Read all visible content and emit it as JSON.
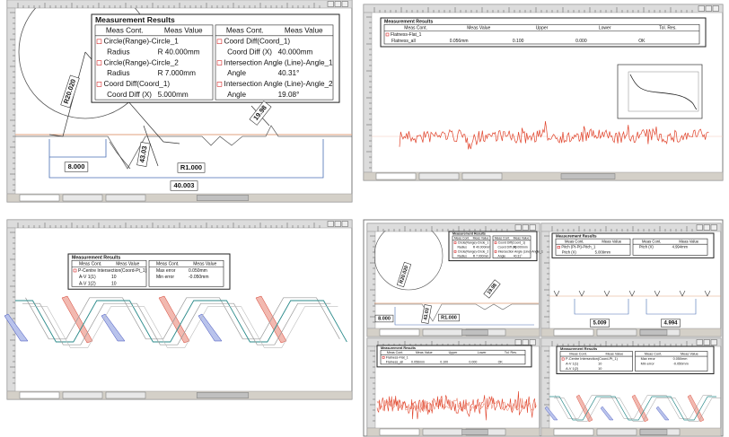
{
  "panels": [
    {
      "table": {
        "title": "Measurement Results",
        "groups": [
          {
            "headers": [
              "Meas Cont.",
              "Meas Value"
            ],
            "rows": [
              [
                "Circle(Range)-Circle_1"
              ],
              [
                "Radius",
                "R 40.000mm"
              ],
              [
                "Circle(Range)-Circle_2"
              ],
              [
                "Radius",
                "R 7.000mm"
              ],
              [
                "Coord Diff(Coord_1)"
              ],
              [
                "Coord Diff (X)",
                "5.000mm"
              ]
            ]
          },
          {
            "headers": [
              "Meas Cont.",
              "Meas Value"
            ],
            "rows": [
              [
                "Coord Diff(Coord_1)"
              ],
              [
                "Coord Diff (X)",
                "40.000mm"
              ],
              [
                "Intersection Angle (Line)-Angle_1"
              ],
              [
                "Angle",
                "40.31°"
              ],
              [
                "Intersection Angle (Line)-Angle_2"
              ],
              [
                "Angle",
                "19.08°"
              ]
            ]
          }
        ]
      },
      "dimensions": [
        "R20.020",
        "8.000",
        "40.003",
        "43.03",
        "R1.000",
        "19.98"
      ]
    },
    {
      "table": {
        "title": "Measurement Results",
        "groups": [
          {
            "headers": [
              "Meas Cont.",
              "Meas Value",
              "Upper",
              "Lower",
              "Tol. Res."
            ],
            "rows": [
              [
                "Flatness-Flat_1"
              ],
              [
                "Flatness_all",
                "0.056mm",
                "0.100",
                "0.000",
                "OK"
              ]
            ]
          }
        ]
      }
    },
    {
      "table": {
        "title": "Measurement Results",
        "groups": [
          {
            "headers": [
              "Meas Cont.",
              "Meas Value"
            ],
            "rows": [
              [
                "P-Centre Intersection(Coord-Pt_1)"
              ],
              [
                "A-V 1(1)",
                "10"
              ],
              [
                "A-V 1(2)",
                "10"
              ]
            ]
          },
          {
            "headers": [
              "Meas Cont.",
              "Meas Value"
            ],
            "rows": [
              [
                "Max error",
                "0.050mm"
              ],
              [
                "Min error",
                "-0.050mm"
              ]
            ]
          }
        ]
      }
    },
    {
      "views": [
        {
          "table": {
            "title": "Measurement Results",
            "groups": [
              {
                "headers": [
                  "Meas Cont.",
                  "Meas Value"
                ],
                "rows": [
                  [
                    "Circle(Range)-Circle_1"
                  ],
                  [
                    "Radius",
                    "R 40.000mm"
                  ],
                  [
                    "Circle(Range)-Circle_2"
                  ],
                  [
                    "Radius",
                    "R 7.000mm"
                  ]
                ]
              },
              {
                "headers": [
                  "Meas Cont.",
                  "Meas Value"
                ],
                "rows": [
                  [
                    "Coord Diff(Coord_1)"
                  ],
                  [
                    "Coord Diff (X)",
                    "40.000mm"
                  ],
                  [
                    "Intersection Angle (Line)-Angle_1"
                  ],
                  [
                    "Angle",
                    "40.31°"
                  ]
                ]
              }
            ]
          },
          "dimensions": [
            "R20.020",
            "8.000",
            "43.03",
            "R1.000",
            "19.98"
          ]
        },
        {
          "table": {
            "title": "Measurement Results",
            "groups": [
              {
                "headers": [
                  "Meas Cont.",
                  "Meas Value"
                ],
                "rows": [
                  [
                    "Pitch (Pt-Pt)-Pitch_1"
                  ],
                  [
                    "Pitch (X)",
                    "5.009mm"
                  ]
                ]
              },
              {
                "headers": [
                  "Meas Cont.",
                  "Meas Value"
                ],
                "rows": [
                  [
                    "Pitch (X)",
                    "4.994mm"
                  ]
                ]
              }
            ]
          },
          "dimensions": [
            "5.009",
            "4.994"
          ]
        },
        {
          "table": {
            "title": "Measurement Results",
            "groups": [
              {
                "headers": [
                  "Meas Cont.",
                  "Meas Value",
                  "Upper",
                  "Lower",
                  "Tol. Res."
                ],
                "rows": [
                  [
                    "Flatness-Flat_1"
                  ],
                  [
                    "Flatness_all",
                    "0.056mm",
                    "0.100",
                    "0.000",
                    "OK"
                  ]
                ]
              }
            ]
          }
        },
        {
          "table": {
            "title": "Measurement Results",
            "groups": [
              {
                "headers": [
                  "Meas Cont.",
                  "Meas Value"
                ],
                "rows": [
                  [
                    "P-Centre Intersection(Coord-Pt_1)"
                  ],
                  [
                    "A-V 1(1)",
                    "10"
                  ],
                  [
                    "A-V 1(2)",
                    "10"
                  ]
                ]
              },
              {
                "headers": [
                  "Meas Cont.",
                  "Meas Value"
                ],
                "rows": [
                  [
                    "Max error",
                    "0.050mm"
                  ],
                  [
                    "Min error",
                    "-0.050mm"
                  ]
                ]
              }
            ]
          }
        }
      ]
    }
  ]
}
